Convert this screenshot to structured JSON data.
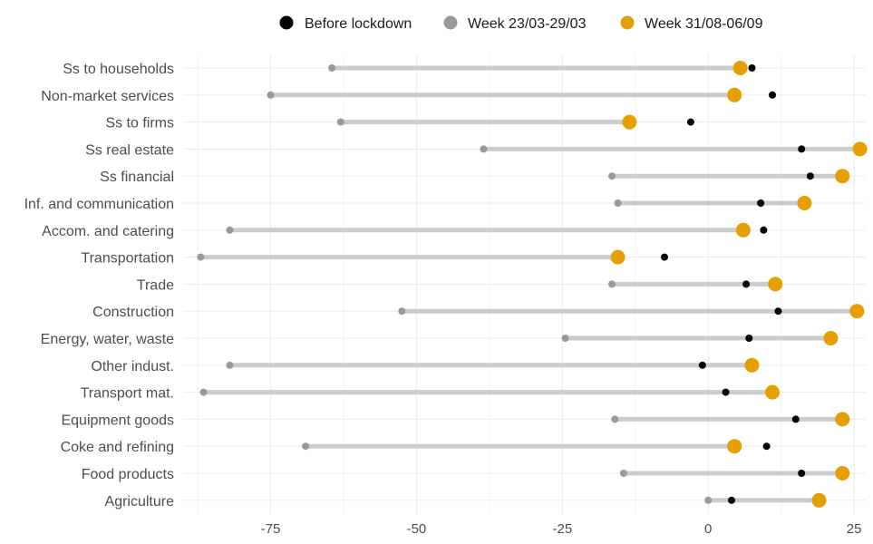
{
  "chart_data": {
    "type": "dumbbell",
    "title": "",
    "xlabel": "",
    "ylabel": "",
    "xlim": [
      -90,
      27
    ],
    "xticks": [
      -75,
      -50,
      -25,
      0,
      25
    ],
    "xtick_labels": [
      "-75",
      "-50",
      "-25",
      "0",
      "25"
    ],
    "grid": true,
    "legend_position": "top",
    "categories": [
      "Ss to households",
      "Non-market services",
      "Ss to firms",
      "Ss real estate",
      "Ss financial",
      "Inf. and communication",
      "Accom. and catering",
      "Transportation",
      "Trade",
      "Construction",
      "Energy, water, waste",
      "Other indust.",
      "Transport mat.",
      "Equipment goods",
      "Coke and refining",
      "Food products",
      "Agriculture"
    ],
    "series": [
      {
        "name": "Before lockdown",
        "color": "#000000",
        "values": [
          7.5,
          11,
          -3,
          16,
          17.5,
          9,
          9.5,
          -7.5,
          6.5,
          12,
          7,
          -1,
          3,
          15,
          10,
          16,
          4
        ]
      },
      {
        "name": "Week 23/03-29/03",
        "color": "#999999",
        "values": [
          -64.5,
          -75,
          -63,
          -38.5,
          -16.5,
          -15.5,
          -82,
          -87,
          -16.5,
          -52.5,
          -24.5,
          -82,
          -86.5,
          -16,
          -69,
          -14.5,
          0
        ]
      },
      {
        "name": "Week 31/08-06/09",
        "color": "#E69F00",
        "values": [
          5.5,
          4.5,
          -13.5,
          26,
          23,
          16.5,
          6,
          -15.5,
          11.5,
          25.5,
          21,
          7.5,
          11,
          23,
          4.5,
          23,
          19
        ]
      }
    ],
    "segment_color": "#cccccc"
  }
}
